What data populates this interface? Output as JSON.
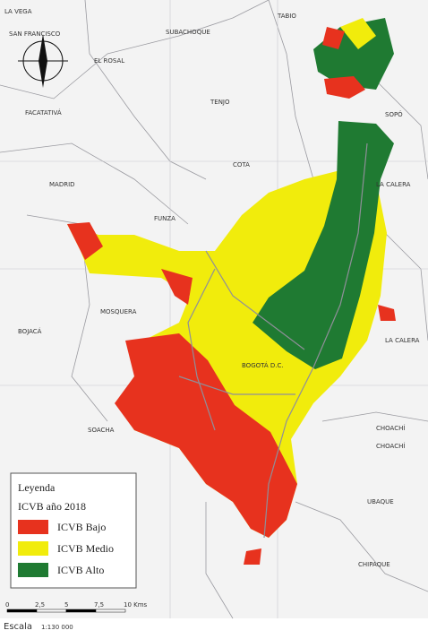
{
  "places": [
    "LA VEGA",
    "SAN FRANCISCO",
    "SUBACHOQUE",
    "TABIO",
    "EL ROSAL",
    "FACATATIVÁ",
    "TENJO",
    "SOPÓ",
    "COTA",
    "MADRID",
    "LA CALERA",
    "FUNZA",
    "MOSQUERA",
    "BOJACÁ",
    "BOGOTÁ D.C.",
    "LA CALERA",
    "CHOACHÍ",
    "CHOACHÍ",
    "UBAQUE",
    "CHIPAQUE",
    "SOACHA"
  ],
  "legend": {
    "title": "Leyenda",
    "subtitle": "ICVB año 2018",
    "items": [
      {
        "label": "ICVB Bajo",
        "color": "#e7321e"
      },
      {
        "label": "ICVB Medio",
        "color": "#f1ec0c"
      },
      {
        "label": "ICVB Alto",
        "color": "#1f7a32"
      }
    ]
  },
  "scale": {
    "ticks": [
      "0",
      "2,5",
      "5",
      "7,5",
      "10 Kms"
    ],
    "title": "Escala",
    "ratio": "1:130 000"
  }
}
